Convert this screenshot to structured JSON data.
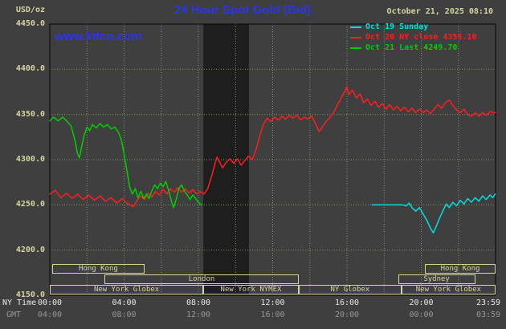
{
  "header": {
    "units_label": "USD/oz",
    "title": "24 Hour Spot Gold (Bid)",
    "datetime": "October 21, 2025 08:10",
    "watermark": "www.kitco.com"
  },
  "legend": {
    "items": [
      {
        "label": "Oct 19 Sunday",
        "color": "#00dede"
      },
      {
        "label": "Oct 20 NY close 4355.10",
        "color": "#ff1e1e"
      },
      {
        "label": "Oct 21 Last 4249.70",
        "color": "#00cf00"
      }
    ]
  },
  "axes": {
    "ny_time_label": "NY Time",
    "gmt_label": "GMT"
  },
  "colors": {
    "background": "#3f3f3f",
    "band": "#1e1e1e",
    "grid": "#8d8d62",
    "border": "#050505",
    "tan": "#d8d4a0",
    "blue": "#2c35e8",
    "ny_tick": "#e8e8e8",
    "gmt_tick": "#979797"
  },
  "chart_data": {
    "type": "line",
    "title": "24 Hour Spot Gold (Bid)",
    "ylabel": "USD/oz",
    "ylim": [
      4150,
      4450
    ],
    "xlim_hours": [
      0,
      24
    ],
    "grid": true,
    "legend_position": "top-right",
    "dark_band_hours": [
      8.27,
      10.72
    ],
    "y_tick_labels": [
      "4450.0",
      "4400.0",
      "4350.0",
      "4300.0",
      "4250.0",
      "4200.0",
      "4150.0"
    ],
    "x_ticks_ny": [
      {
        "hour": 0,
        "label": "00:00"
      },
      {
        "hour": 4,
        "label": "04:00"
      },
      {
        "hour": 8,
        "label": "08:00"
      },
      {
        "hour": 12,
        "label": "12:00"
      },
      {
        "hour": 16,
        "label": "16:00"
      },
      {
        "hour": 20,
        "label": "20:00"
      },
      {
        "hour": 23.98,
        "label": "23:59"
      }
    ],
    "x_ticks_gmt": [
      {
        "hour": 0,
        "label": "04:00"
      },
      {
        "hour": 4,
        "label": "08:00"
      },
      {
        "hour": 8,
        "label": "12:00"
      },
      {
        "hour": 12,
        "label": "16:00"
      },
      {
        "hour": 16,
        "label": "20:00"
      },
      {
        "hour": 20,
        "label": "00:00"
      },
      {
        "hour": 23.98,
        "label": "03:59"
      }
    ],
    "sessions": [
      {
        "row": 0,
        "start": 0.13,
        "end": 5.1,
        "label": "Hong Kong"
      },
      {
        "row": 0,
        "start": 20.2,
        "end": 24,
        "label": "Hong Kong"
      },
      {
        "row": 1,
        "start": 2.95,
        "end": 13.4,
        "label": "London"
      },
      {
        "row": 1,
        "start": 18.75,
        "end": 22.9,
        "label": "Sydney"
      },
      {
        "row": 2,
        "start": 0,
        "end": 8.27,
        "label": "New York Globex"
      },
      {
        "row": 2,
        "start": 8.27,
        "end": 13.4,
        "label": "New York NYMEX"
      },
      {
        "row": 2,
        "start": 13.4,
        "end": 18.93,
        "label": "NY Globex"
      },
      {
        "row": 2,
        "start": 18.93,
        "end": 24,
        "label": "New York Globex"
      }
    ],
    "series": [
      {
        "name": "Oct 19 Sunday",
        "color": "#00dede",
        "points": [
          [
            17.35,
            4250
          ],
          [
            17.6,
            4250
          ],
          [
            17.9,
            4250
          ],
          [
            18.2,
            4250
          ],
          [
            18.5,
            4250
          ],
          [
            18.8,
            4250
          ],
          [
            19.0,
            4250
          ],
          [
            19.2,
            4249
          ],
          [
            19.35,
            4252
          ],
          [
            19.5,
            4247
          ],
          [
            19.7,
            4243
          ],
          [
            19.9,
            4247
          ],
          [
            20.1,
            4240
          ],
          [
            20.3,
            4233
          ],
          [
            20.5,
            4224
          ],
          [
            20.65,
            4219
          ],
          [
            20.8,
            4226
          ],
          [
            21.0,
            4236
          ],
          [
            21.2,
            4245
          ],
          [
            21.35,
            4251
          ],
          [
            21.5,
            4247
          ],
          [
            21.7,
            4253
          ],
          [
            21.9,
            4249
          ],
          [
            22.1,
            4255
          ],
          [
            22.3,
            4251
          ],
          [
            22.5,
            4257
          ],
          [
            22.7,
            4253
          ],
          [
            22.9,
            4258
          ],
          [
            23.1,
            4254
          ],
          [
            23.3,
            4260
          ],
          [
            23.5,
            4256
          ],
          [
            23.7,
            4261
          ],
          [
            23.85,
            4258
          ],
          [
            23.98,
            4262
          ]
        ]
      },
      {
        "name": "Oct 20 NY close 4355.10",
        "color": "#ff1e1e",
        "points": [
          [
            0,
            4262
          ],
          [
            0.3,
            4266
          ],
          [
            0.6,
            4258
          ],
          [
            0.9,
            4263
          ],
          [
            1.2,
            4257
          ],
          [
            1.5,
            4262
          ],
          [
            1.8,
            4256
          ],
          [
            2.1,
            4261
          ],
          [
            2.4,
            4255
          ],
          [
            2.7,
            4260
          ],
          [
            3.0,
            4254
          ],
          [
            3.3,
            4258
          ],
          [
            3.6,
            4252
          ],
          [
            3.9,
            4257
          ],
          [
            4.1,
            4253
          ],
          [
            4.3,
            4250
          ],
          [
            4.5,
            4248
          ],
          [
            4.7,
            4255
          ],
          [
            4.9,
            4260
          ],
          [
            5.1,
            4256
          ],
          [
            5.3,
            4263
          ],
          [
            5.5,
            4259
          ],
          [
            5.7,
            4265
          ],
          [
            5.9,
            4261
          ],
          [
            6.1,
            4267
          ],
          [
            6.3,
            4262
          ],
          [
            6.5,
            4268
          ],
          [
            6.7,
            4264
          ],
          [
            6.9,
            4269
          ],
          [
            7.1,
            4264
          ],
          [
            7.3,
            4268
          ],
          [
            7.5,
            4263
          ],
          [
            7.7,
            4267
          ],
          [
            7.9,
            4262
          ],
          [
            8.1,
            4265
          ],
          [
            8.3,
            4262
          ],
          [
            8.5,
            4268
          ],
          [
            8.7,
            4281
          ],
          [
            8.9,
            4296
          ],
          [
            9.0,
            4303
          ],
          [
            9.15,
            4297
          ],
          [
            9.3,
            4291
          ],
          [
            9.5,
            4297
          ],
          [
            9.7,
            4301
          ],
          [
            9.9,
            4296
          ],
          [
            10.1,
            4301
          ],
          [
            10.3,
            4294
          ],
          [
            10.5,
            4299
          ],
          [
            10.7,
            4304
          ],
          [
            10.9,
            4300
          ],
          [
            11.1,
            4311
          ],
          [
            11.3,
            4326
          ],
          [
            11.5,
            4339
          ],
          [
            11.7,
            4346
          ],
          [
            11.9,
            4342
          ],
          [
            12.1,
            4347
          ],
          [
            12.3,
            4344
          ],
          [
            12.5,
            4348
          ],
          [
            12.7,
            4345
          ],
          [
            12.9,
            4349
          ],
          [
            13.1,
            4346
          ],
          [
            13.3,
            4349
          ],
          [
            13.5,
            4344
          ],
          [
            13.7,
            4347
          ],
          [
            13.9,
            4345
          ],
          [
            14.1,
            4348
          ],
          [
            14.3,
            4340
          ],
          [
            14.5,
            4331
          ],
          [
            14.7,
            4337
          ],
          [
            14.9,
            4343
          ],
          [
            15.1,
            4347
          ],
          [
            15.3,
            4353
          ],
          [
            15.5,
            4361
          ],
          [
            15.7,
            4369
          ],
          [
            15.9,
            4376
          ],
          [
            16.0,
            4381
          ],
          [
            16.1,
            4372
          ],
          [
            16.3,
            4377
          ],
          [
            16.5,
            4368
          ],
          [
            16.7,
            4373
          ],
          [
            16.9,
            4363
          ],
          [
            17.1,
            4367
          ],
          [
            17.3,
            4360
          ],
          [
            17.5,
            4365
          ],
          [
            17.7,
            4358
          ],
          [
            17.9,
            4362
          ],
          [
            18.1,
            4356
          ],
          [
            18.3,
            4361
          ],
          [
            18.5,
            4355
          ],
          [
            18.7,
            4359
          ],
          [
            18.9,
            4354
          ],
          [
            19.1,
            4358
          ],
          [
            19.3,
            4353
          ],
          [
            19.5,
            4357
          ],
          [
            19.7,
            4352
          ],
          [
            19.9,
            4356
          ],
          [
            20.1,
            4352
          ],
          [
            20.3,
            4355
          ],
          [
            20.5,
            4351
          ],
          [
            20.7,
            4356
          ],
          [
            20.9,
            4361
          ],
          [
            21.1,
            4357
          ],
          [
            21.3,
            4363
          ],
          [
            21.5,
            4366
          ],
          [
            21.7,
            4360
          ],
          [
            21.9,
            4355
          ],
          [
            22.1,
            4352
          ],
          [
            22.3,
            4356
          ],
          [
            22.5,
            4350
          ],
          [
            22.7,
            4348
          ],
          [
            22.9,
            4352
          ],
          [
            23.1,
            4348
          ],
          [
            23.3,
            4352
          ],
          [
            23.5,
            4349
          ],
          [
            23.7,
            4353
          ],
          [
            23.98,
            4352
          ]
        ]
      },
      {
        "name": "Oct 21 Last 4249.70",
        "color": "#00cf00",
        "points": [
          [
            0,
            4343
          ],
          [
            0.2,
            4347
          ],
          [
            0.45,
            4343
          ],
          [
            0.7,
            4347
          ],
          [
            0.95,
            4342
          ],
          [
            1.15,
            4337
          ],
          [
            1.35,
            4322
          ],
          [
            1.5,
            4306
          ],
          [
            1.6,
            4302
          ],
          [
            1.72,
            4315
          ],
          [
            1.85,
            4327
          ],
          [
            2.0,
            4336
          ],
          [
            2.15,
            4332
          ],
          [
            2.3,
            4339
          ],
          [
            2.5,
            4335
          ],
          [
            2.7,
            4340
          ],
          [
            2.9,
            4336
          ],
          [
            3.1,
            4339
          ],
          [
            3.3,
            4334
          ],
          [
            3.5,
            4336
          ],
          [
            3.7,
            4330
          ],
          [
            3.85,
            4322
          ],
          [
            4.0,
            4306
          ],
          [
            4.15,
            4288
          ],
          [
            4.3,
            4270
          ],
          [
            4.45,
            4262
          ],
          [
            4.6,
            4268
          ],
          [
            4.75,
            4258
          ],
          [
            4.9,
            4265
          ],
          [
            5.05,
            4257
          ],
          [
            5.2,
            4262
          ],
          [
            5.35,
            4257
          ],
          [
            5.5,
            4266
          ],
          [
            5.65,
            4272
          ],
          [
            5.8,
            4268
          ],
          [
            5.95,
            4274
          ],
          [
            6.1,
            4270
          ],
          [
            6.25,
            4276
          ],
          [
            6.4,
            4266
          ],
          [
            6.55,
            4254
          ],
          [
            6.67,
            4247
          ],
          [
            6.8,
            4256
          ],
          [
            6.95,
            4268
          ],
          [
            7.1,
            4272
          ],
          [
            7.25,
            4265
          ],
          [
            7.4,
            4261
          ],
          [
            7.55,
            4256
          ],
          [
            7.7,
            4261
          ],
          [
            7.85,
            4257
          ],
          [
            8.0,
            4253
          ],
          [
            8.15,
            4250
          ]
        ]
      }
    ]
  }
}
